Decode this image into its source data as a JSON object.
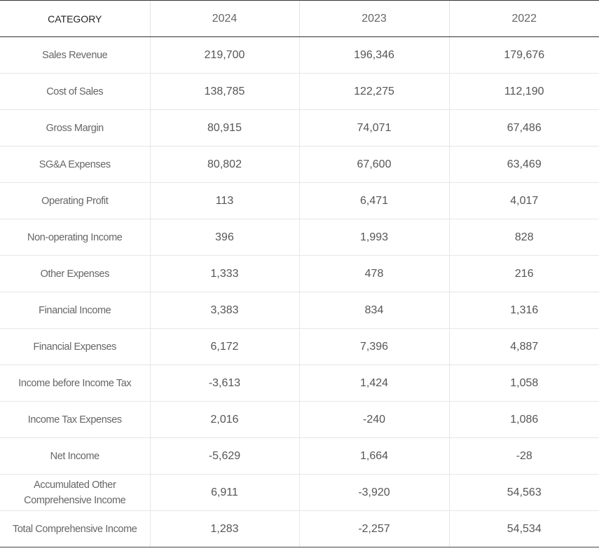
{
  "table": {
    "headers": [
      "CATEGORY",
      "2024",
      "2023",
      "2022"
    ],
    "rows": [
      [
        "Sales Revenue",
        "219,700",
        "196,346",
        "179,676"
      ],
      [
        "Cost of Sales",
        "138,785",
        "122,275",
        "112,190"
      ],
      [
        "Gross Margin",
        "80,915",
        "74,071",
        "67,486"
      ],
      [
        "SG&A Expenses",
        "80,802",
        "67,600",
        "63,469"
      ],
      [
        "Operating Profit",
        "113",
        "6,471",
        "4,017"
      ],
      [
        "Non-operating Income",
        "396",
        "1,993",
        "828"
      ],
      [
        "Other Expenses",
        "1,333",
        "478",
        "216"
      ],
      [
        "Financial Income",
        "3,383",
        "834",
        "1,316"
      ],
      [
        "Financial Expenses",
        "6,172",
        "7,396",
        "4,887"
      ],
      [
        "Income before Income Tax",
        "-3,613",
        "1,424",
        "1,058"
      ],
      [
        "Income Tax Expenses",
        "2,016",
        "-240",
        "1,086"
      ],
      [
        "Net Income",
        "-5,629",
        "1,664",
        "-28"
      ],
      [
        "Accumulated Other Comprehensive Income",
        "6,911",
        "-3,920",
        "54,563"
      ],
      [
        "Total Comprehensive Income",
        "1,283",
        "-2,257",
        "54,534"
      ]
    ]
  }
}
